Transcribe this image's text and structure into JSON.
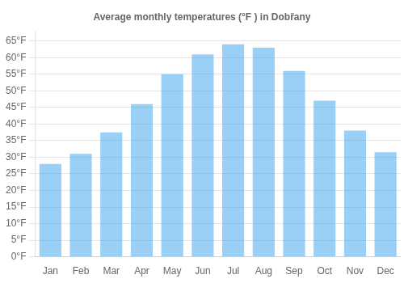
{
  "chart_data": {
    "type": "bar",
    "title": "Average monthly temperatures (°F ) in Dobřany",
    "categories": [
      "Jan",
      "Feb",
      "Mar",
      "Apr",
      "May",
      "Jun",
      "Jul",
      "Aug",
      "Sep",
      "Oct",
      "Nov",
      "Dec"
    ],
    "values": [
      28,
      31,
      37.5,
      46,
      55,
      61,
      64,
      63,
      56,
      47,
      38,
      31.5
    ],
    "ylim": [
      0,
      68
    ],
    "yticks": [
      {
        "value": 0,
        "label": "0°F"
      },
      {
        "value": 5,
        "label": "5°F"
      },
      {
        "value": 10,
        "label": "10°F"
      },
      {
        "value": 15,
        "label": "15°F"
      },
      {
        "value": 20,
        "label": "20°F"
      },
      {
        "value": 25,
        "label": "25°F"
      },
      {
        "value": 30,
        "label": "30°F"
      },
      {
        "value": 35,
        "label": "35°F"
      },
      {
        "value": 40,
        "label": "40°F"
      },
      {
        "value": 45,
        "label": "45°F"
      },
      {
        "value": 50,
        "label": "50°F"
      },
      {
        "value": 55,
        "label": "55°F"
      },
      {
        "value": 60,
        "label": "60°F"
      },
      {
        "value": 65,
        "label": "65°F"
      }
    ],
    "grid": true
  }
}
